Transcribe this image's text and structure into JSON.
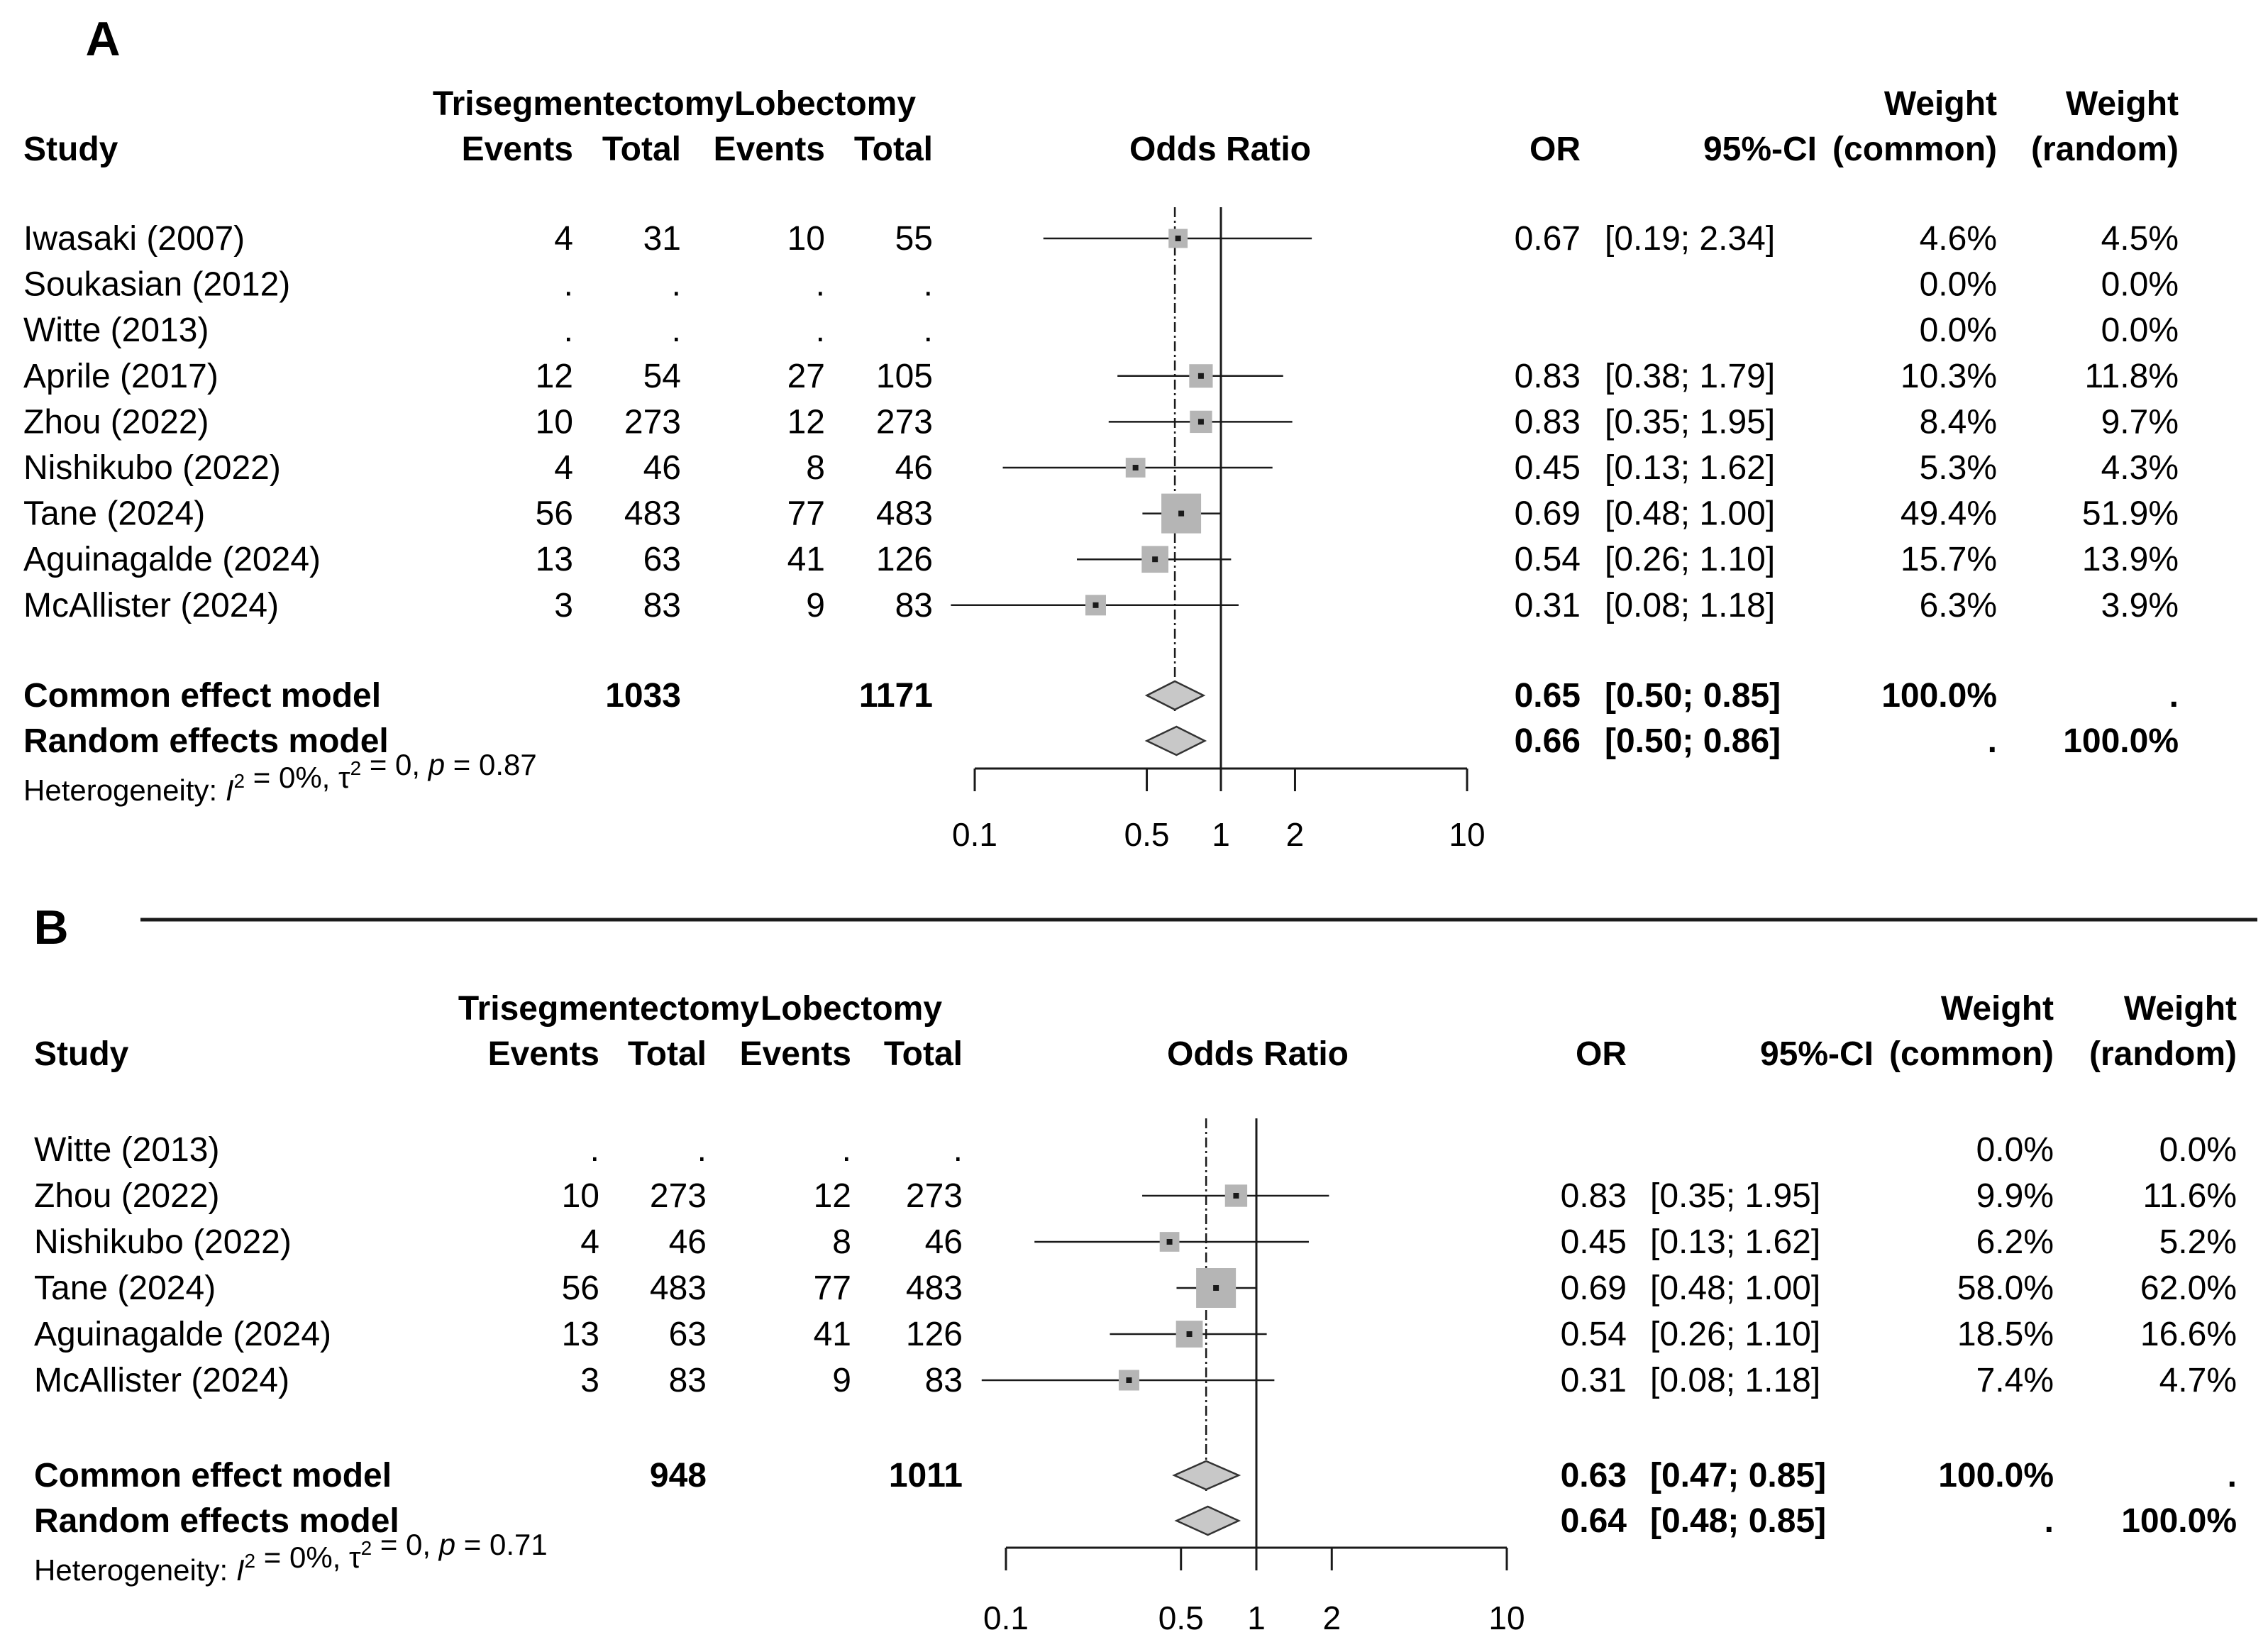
{
  "chart_data": [
    {
      "panel": "A",
      "type": "forest",
      "headers": {
        "group1": "Trisegmentectomy",
        "group2": "Lobectomy",
        "study": "Study",
        "events": "Events",
        "total": "Total",
        "or_title": "Odds Ratio",
        "or": "OR",
        "ci": "95%-CI",
        "weight": "Weight",
        "w_common": "(common)",
        "w_random": "(random)"
      },
      "studies": [
        {
          "name": "Iwasaki (2007)",
          "e1": "4",
          "n1": "31",
          "e2": "10",
          "n2": "55",
          "or_text": "0.67",
          "ci_text": "[0.19; 2.34]",
          "wc": "4.6%",
          "wr": "4.5%",
          "or": 0.67,
          "lo": 0.19,
          "hi": 2.34,
          "w": 4.6
        },
        {
          "name": "Soukasian (2012)",
          "e1": ".",
          "n1": ".",
          "e2": ".",
          "n2": ".",
          "or_text": "",
          "ci_text": "",
          "wc": "0.0%",
          "wr": "0.0%",
          "or": null,
          "lo": null,
          "hi": null,
          "w": 0
        },
        {
          "name": "Witte (2013)",
          "e1": ".",
          "n1": ".",
          "e2": ".",
          "n2": ".",
          "or_text": "",
          "ci_text": "",
          "wc": "0.0%",
          "wr": "0.0%",
          "or": null,
          "lo": null,
          "hi": null,
          "w": 0
        },
        {
          "name": "Aprile (2017)",
          "e1": "12",
          "n1": "54",
          "e2": "27",
          "n2": "105",
          "or_text": "0.83",
          "ci_text": "[0.38; 1.79]",
          "wc": "10.3%",
          "wr": "11.8%",
          "or": 0.83,
          "lo": 0.38,
          "hi": 1.79,
          "w": 10.3
        },
        {
          "name": "Zhou (2022)",
          "e1": "10",
          "n1": "273",
          "e2": "12",
          "n2": "273",
          "or_text": "0.83",
          "ci_text": "[0.35; 1.95]",
          "wc": "8.4%",
          "wr": "9.7%",
          "or": 0.83,
          "lo": 0.35,
          "hi": 1.95,
          "w": 8.4
        },
        {
          "name": "Nishikubo (2022)",
          "e1": "4",
          "n1": "46",
          "e2": "8",
          "n2": "46",
          "or_text": "0.45",
          "ci_text": "[0.13; 1.62]",
          "wc": "5.3%",
          "wr": "4.3%",
          "or": 0.45,
          "lo": 0.13,
          "hi": 1.62,
          "w": 5.3
        },
        {
          "name": "Tane (2024)",
          "e1": "56",
          "n1": "483",
          "e2": "77",
          "n2": "483",
          "or_text": "0.69",
          "ci_text": "[0.48; 1.00]",
          "wc": "49.4%",
          "wr": "51.9%",
          "or": 0.69,
          "lo": 0.48,
          "hi": 1.0,
          "w": 49.4
        },
        {
          "name": "Aguinagalde (2024)",
          "e1": "13",
          "n1": "63",
          "e2": "41",
          "n2": "126",
          "or_text": "0.54",
          "ci_text": "[0.26; 1.10]",
          "wc": "15.7%",
          "wr": "13.9%",
          "or": 0.54,
          "lo": 0.26,
          "hi": 1.1,
          "w": 15.7
        },
        {
          "name": "McAllister (2024)",
          "e1": "3",
          "n1": "83",
          "e2": "9",
          "n2": "83",
          "or_text": "0.31",
          "ci_text": "[0.08; 1.18]",
          "wc": "6.3%",
          "wr": "3.9%",
          "or": 0.31,
          "lo": 0.08,
          "hi": 1.18,
          "w": 6.3
        }
      ],
      "common": {
        "label": "Common effect model",
        "n1": "1033",
        "n2": "1171",
        "or_text": "0.65",
        "ci_text": "[0.50; 0.85]",
        "wc": "100.0%",
        "wr": ".",
        "or": 0.65,
        "lo": 0.5,
        "hi": 0.85
      },
      "random": {
        "label": "Random effects model",
        "or_text": "0.66",
        "ci_text": "[0.50; 0.86]",
        "wc": ".",
        "wr": "100.0%",
        "or": 0.66,
        "lo": 0.5,
        "hi": 0.86
      },
      "heterogeneity": {
        "prefix": "Heterogeneity: ",
        "i2_sym": "I",
        "i2_sup": "2",
        "i2_val": " = 0%, ",
        "tau_sym": "τ",
        "tau_sup": "2",
        "tau_val": " = 0, ",
        "p_sym": "p",
        "p_val": " = 0.87"
      },
      "axis": {
        "scale": "log",
        "xlim": [
          0.1,
          10
        ],
        "ticks": [
          0.1,
          0.5,
          1,
          2,
          10
        ],
        "tick_labels": [
          "0.1",
          "0.5",
          "1",
          "2",
          "10"
        ],
        "null_line": 1
      }
    },
    {
      "panel": "B",
      "type": "forest",
      "headers": {
        "group1": "Trisegmentectomy",
        "group2": "Lobectomy",
        "study": "Study",
        "events": "Events",
        "total": "Total",
        "or_title": "Odds Ratio",
        "or": "OR",
        "ci": "95%-CI",
        "weight": "Weight",
        "w_common": "(common)",
        "w_random": "(random)"
      },
      "studies": [
        {
          "name": "Witte (2013)",
          "e1": ".",
          "n1": ".",
          "e2": ".",
          "n2": ".",
          "or_text": "",
          "ci_text": "",
          "wc": "0.0%",
          "wr": "0.0%",
          "or": null,
          "lo": null,
          "hi": null,
          "w": 0
        },
        {
          "name": "Zhou (2022)",
          "e1": "10",
          "n1": "273",
          "e2": "12",
          "n2": "273",
          "or_text": "0.83",
          "ci_text": "[0.35; 1.95]",
          "wc": "9.9%",
          "wr": "11.6%",
          "or": 0.83,
          "lo": 0.35,
          "hi": 1.95,
          "w": 9.9
        },
        {
          "name": "Nishikubo (2022)",
          "e1": "4",
          "n1": "46",
          "e2": "8",
          "n2": "46",
          "or_text": "0.45",
          "ci_text": "[0.13; 1.62]",
          "wc": "6.2%",
          "wr": "5.2%",
          "or": 0.45,
          "lo": 0.13,
          "hi": 1.62,
          "w": 6.2
        },
        {
          "name": "Tane (2024)",
          "e1": "56",
          "n1": "483",
          "e2": "77",
          "n2": "483",
          "or_text": "0.69",
          "ci_text": "[0.48; 1.00]",
          "wc": "58.0%",
          "wr": "62.0%",
          "or": 0.69,
          "lo": 0.48,
          "hi": 1.0,
          "w": 58.0
        },
        {
          "name": "Aguinagalde (2024)",
          "e1": "13",
          "n1": "63",
          "e2": "41",
          "n2": "126",
          "or_text": "0.54",
          "ci_text": "[0.26; 1.10]",
          "wc": "18.5%",
          "wr": "16.6%",
          "or": 0.54,
          "lo": 0.26,
          "hi": 1.1,
          "w": 18.5
        },
        {
          "name": "McAllister (2024)",
          "e1": "3",
          "n1": "83",
          "e2": "9",
          "n2": "83",
          "or_text": "0.31",
          "ci_text": "[0.08; 1.18]",
          "wc": "7.4%",
          "wr": "4.7%",
          "or": 0.31,
          "lo": 0.08,
          "hi": 1.18,
          "w": 7.4
        }
      ],
      "common": {
        "label": "Common effect model",
        "n1": "948",
        "n2": "1011",
        "or_text": "0.63",
        "ci_text": "[0.47; 0.85]",
        "wc": "100.0%",
        "wr": ".",
        "or": 0.63,
        "lo": 0.47,
        "hi": 0.85
      },
      "random": {
        "label": "Random effects model",
        "or_text": "0.64",
        "ci_text": "[0.48; 0.85]",
        "wc": ".",
        "wr": "100.0%",
        "or": 0.64,
        "lo": 0.48,
        "hi": 0.85
      },
      "heterogeneity": {
        "prefix": "Heterogeneity: ",
        "i2_sym": "I",
        "i2_sup": "2",
        "i2_val": " = 0%, ",
        "tau_sym": "τ",
        "tau_sup": "2",
        "tau_val": " = 0, ",
        "p_sym": "p",
        "p_val": " = 0.71"
      },
      "axis": {
        "scale": "log",
        "xlim": [
          0.1,
          10
        ],
        "ticks": [
          0.1,
          0.5,
          1,
          2,
          10
        ],
        "tick_labels": [
          "0.1",
          "0.5",
          "1",
          "2",
          "10"
        ],
        "null_line": 1
      }
    }
  ]
}
